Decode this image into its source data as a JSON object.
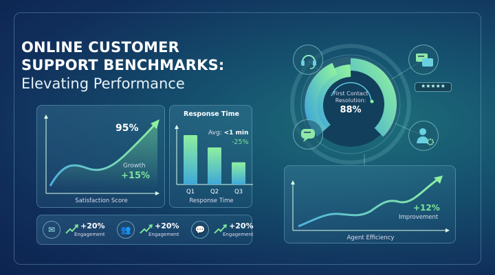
{
  "title": {
    "line1": "ONLINE CUSTOMER",
    "line2": "SUPPORT BENCHMARKS:",
    "subtitle": "Elevating Performance"
  },
  "satisfaction": {
    "value": "95%",
    "growth_label": "Growth",
    "growth_value": "+15%",
    "caption": "Satisfaction Score"
  },
  "response": {
    "title": "Response Time",
    "avg_label": "Avg:",
    "avg_value": "<1 min",
    "change": "-25%",
    "caption": "Response Time",
    "chart_data": {
      "type": "bar",
      "categories": [
        "Q1",
        "Q2",
        "Q3"
      ],
      "values": [
        100,
        75,
        45
      ]
    }
  },
  "engagement": [
    {
      "icon": "mail-icon",
      "value": "+20%",
      "label": "Engagement"
    },
    {
      "icon": "users-chat-icon",
      "value": "+20%",
      "label": "Engagement"
    },
    {
      "icon": "chat-icon",
      "value": "+20%",
      "label": "Engagement"
    }
  ],
  "gauge": {
    "label1": "First Contact",
    "label2": "Resolution:",
    "value": "88%",
    "fraction": 0.88
  },
  "rating": {
    "stars": 5
  },
  "efficiency": {
    "value": "+12%",
    "label": "Improvement",
    "caption": "Agent Efficiency"
  },
  "colors": {
    "accent": "#7be39a",
    "line": "#5ec8e0"
  }
}
